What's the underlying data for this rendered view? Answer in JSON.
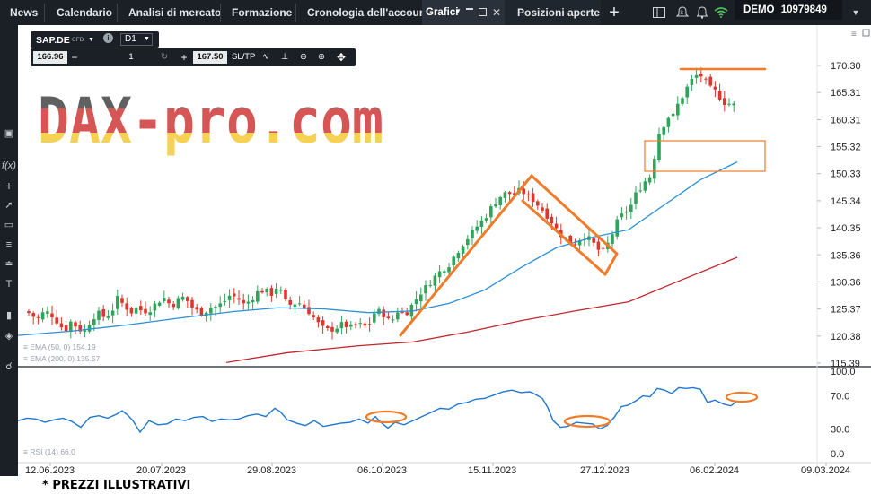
{
  "topnav": {
    "items": [
      "News",
      "Calendario",
      "Analisi di mercato",
      "Formazione",
      "Cronologia dell'account"
    ],
    "tab_grafici": "Grafici",
    "tab_posizioni": "Posizioni aperte",
    "add_tab": "+",
    "account_mode": "DEMO",
    "account_number": "10979849"
  },
  "instrument": {
    "symbol": "SAP.DE",
    "type": "CFD",
    "timeframe": "D1",
    "sell_price": "166.96",
    "quantity": "1",
    "buy_price": "167.50",
    "sltp_label": "SL/TP"
  },
  "watermark": "DAX-pro.com",
  "indicators": {
    "ema50_label": "EMA (50, 0)",
    "ema50_value": "154.19",
    "ema200_label": "EMA (200, 0)",
    "ema200_value": "135.57",
    "rsi_label": "RSI (14)",
    "rsi_value": "66.0"
  },
  "chart_data": {
    "type": "candlestick",
    "price_axis_ticks": [
      "170.30",
      "165.31",
      "160.31",
      "155.32",
      "150.33",
      "145.34",
      "140.35",
      "135.36",
      "130.36",
      "125.37",
      "120.38",
      "115.39"
    ],
    "rsi_axis_ticks": [
      "100.0",
      "70.0",
      "30.0",
      "0.0"
    ],
    "date_axis_ticks": [
      "12.06.2023",
      "20.07.2023",
      "29.08.2023",
      "06.10.2023",
      "15.11.2023",
      "27.12.2023",
      "06.02.2024",
      "09.03.2024"
    ],
    "ylim": [
      115.39,
      170.3
    ],
    "rsi_ylim": [
      0,
      100
    ],
    "series": [
      {
        "name": "EMA (50, 0)",
        "color": "#2b8fd6"
      },
      {
        "name": "EMA (200, 0)",
        "color": "#c0272d"
      },
      {
        "name": "RSI (14)",
        "color": "#1f77d0"
      }
    ],
    "bull_color": "#2fa55a",
    "bear_color": "#e0352b",
    "annotation_color": "#f07c2a"
  },
  "footnote": "* PREZZI ILLUSTRATIVI"
}
